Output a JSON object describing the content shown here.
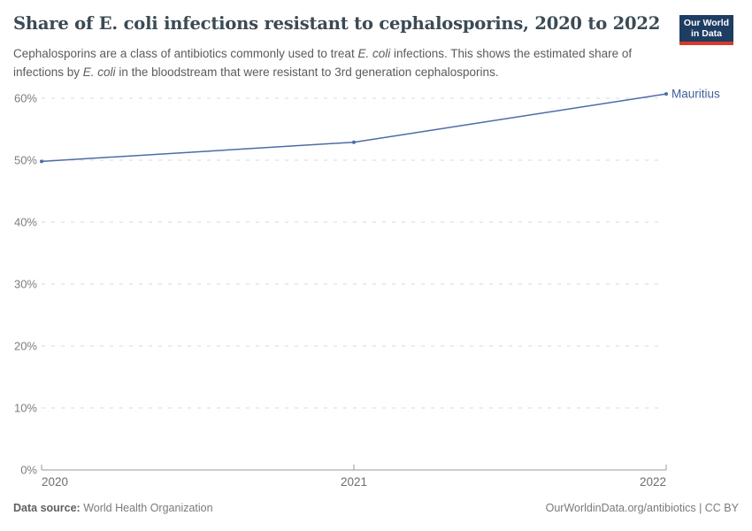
{
  "header": {
    "title": "Share of E. coli infections resistant to cephalosporins, 2020 to 2022",
    "subtitle_parts": [
      {
        "text": "Cephalosporins are a class of antibiotics commonly used to treat ",
        "italic": false
      },
      {
        "text": "E. coli",
        "italic": true
      },
      {
        "text": " infections. This shows the estimated share of infections by ",
        "italic": false
      },
      {
        "text": "E. coli",
        "italic": true
      },
      {
        "text": " in the bloodstream that were resistant to 3rd generation cephalosporins.",
        "italic": false
      }
    ]
  },
  "logo": {
    "line1": "Our World",
    "line2": "in Data",
    "bg_color": "#1d3d63",
    "bar_color": "#d93a2b"
  },
  "chart_data": {
    "type": "line",
    "title": "Share of E. coli infections resistant to cephalosporins, 2020 to 2022",
    "x": [
      2020,
      2021,
      2022
    ],
    "xtick_labels": [
      "2020",
      "2021",
      "2022"
    ],
    "series": [
      {
        "name": "Mauritius",
        "values": [
          49.8,
          52.9,
          60.7
        ],
        "color": "#4d6ca6",
        "label_color": "#3d5f99"
      }
    ],
    "ylim": [
      0,
      60
    ],
    "yticks": [
      0,
      10,
      20,
      30,
      40,
      50,
      60
    ],
    "ytick_format": "%",
    "grid": "dashed horizontal",
    "grid_color": "#d9d9d9",
    "axis_color": "#999999",
    "tick_label_color": "#7d7d7d",
    "legend_position": "end-of-line label"
  },
  "footer": {
    "source_label": "Data source:",
    "source_value": " World Health Organization",
    "attribution": "OurWorldinData.org/antibiotics | CC BY"
  }
}
